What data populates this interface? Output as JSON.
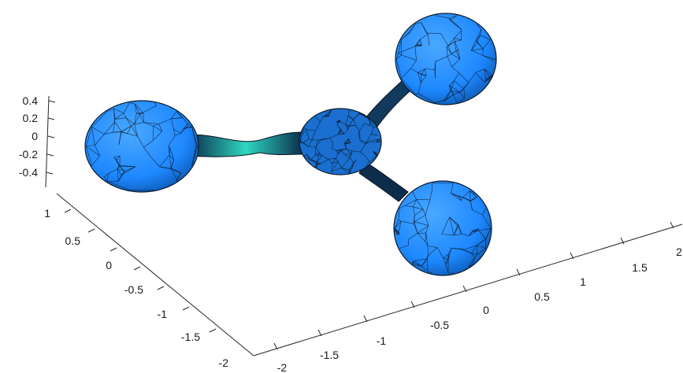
{
  "figure": {
    "type": "3d-triangulated-surface-mesh",
    "surface_color": "#1e88ff",
    "edge_color": "#0a1a2a",
    "neck_highlight_color": "#2fd6c0",
    "background": "#ffffff"
  },
  "axes": {
    "z": {
      "ticks": [
        "0.4",
        "0.2",
        "0",
        "-0.2",
        "-0.4"
      ]
    },
    "y": {
      "ticks": [
        "1",
        "0.5",
        "0",
        "-0.5",
        "-1",
        "-1.5",
        "-2"
      ]
    },
    "x": {
      "ticks": [
        "-2",
        "-1.5",
        "-1",
        "-0.5",
        "0",
        "0.5",
        "1",
        "1.5",
        "2"
      ]
    }
  }
}
